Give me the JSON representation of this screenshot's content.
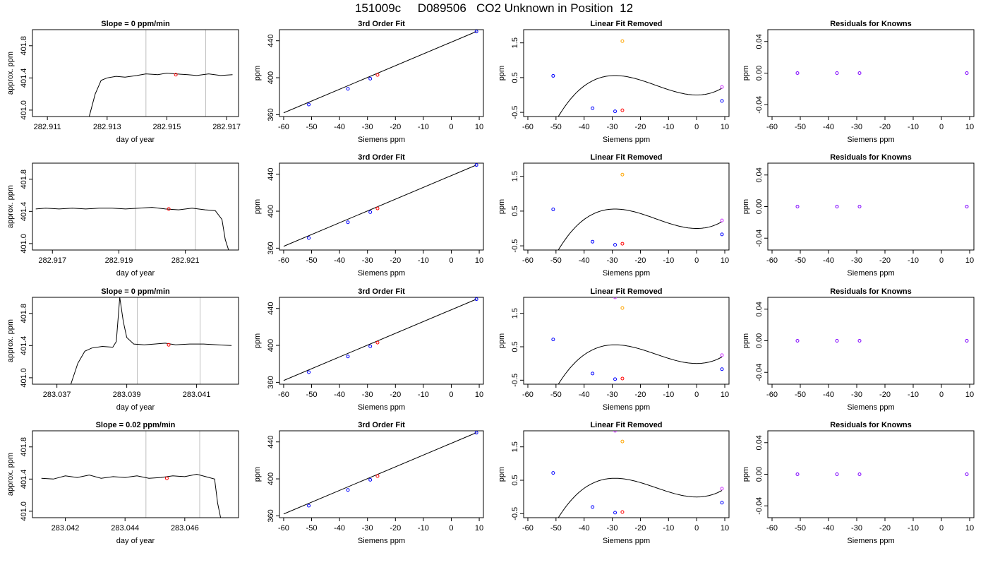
{
  "title": "151009c     D089506   CO2 Unknown in Position  12",
  "colors": {
    "trace": "#000000",
    "known": "#0000ff",
    "unknown": "#ff0000",
    "extra_orange": "#ffa500",
    "extra_magenta": "#cc33ff",
    "residual": "#7f00ff",
    "vline": "#bebebe"
  },
  "chart_data": [
    {
      "type": "line",
      "title": "Slope =  0  ppm/min",
      "xlabel": "day of year",
      "ylabel": "approx. ppm",
      "xlim": [
        282.9105,
        282.9174
      ],
      "ylim": [
        400.92,
        402.0
      ],
      "xticks": [
        "282.911",
        "282.913",
        "282.915",
        "282.917"
      ],
      "xtick_values": [
        282.911,
        282.913,
        282.915,
        282.917
      ],
      "yticks": [
        "401.0",
        "401.4",
        "401.8"
      ],
      "ytick_values": [
        401.0,
        401.4,
        401.8
      ],
      "vlines": [
        282.9143,
        282.9163
      ],
      "series": [
        {
          "x": [
            282.9124,
            282.9126,
            282.9128,
            282.913,
            282.9133,
            282.9136,
            282.914,
            282.9143,
            282.9147,
            282.915,
            282.9153,
            282.9157,
            282.916,
            282.9164,
            282.9168,
            282.9172
          ],
          "y": [
            400.92,
            401.2,
            401.37,
            401.4,
            401.42,
            401.41,
            401.43,
            401.45,
            401.44,
            401.46,
            401.45,
            401.44,
            401.43,
            401.45,
            401.43,
            401.44
          ]
        }
      ],
      "marker": {
        "x": 282.9153,
        "y": 401.44
      },
      "grid": false
    },
    {
      "type": "scatter",
      "title": "3rd Order Fit",
      "xlabel": "Siemens ppm",
      "ylabel": "ppm",
      "xlim": [
        -61.5,
        11.5
      ],
      "ylim": [
        358,
        452
      ],
      "xticks": [
        "-60",
        "-50",
        "-40",
        "-30",
        "-20",
        "-10",
        "0",
        "10"
      ],
      "xtick_values": [
        -60,
        -50,
        -40,
        -30,
        -20,
        -10,
        0,
        10
      ],
      "yticks": [
        "360",
        "400",
        "440"
      ],
      "ytick_values": [
        360,
        400,
        440
      ],
      "fit_line": {
        "x": [
          -60,
          9
        ],
        "y": [
          362,
          450
        ]
      },
      "known_points": {
        "x": [
          -51,
          -37,
          -29,
          9
        ],
        "y": [
          371,
          388,
          399,
          450
        ]
      },
      "unknown_point": {
        "x": -26.4,
        "y": 403
      },
      "grid": false
    },
    {
      "type": "scatter",
      "title": "Linear Fit Removed",
      "xlabel": "Siemens ppm",
      "ylabel": "ppm",
      "xlim": [
        -61.5,
        11.5
      ],
      "ylim": [
        -0.62,
        1.88
      ],
      "xticks": [
        "-60",
        "-50",
        "-40",
        "-30",
        "-20",
        "-10",
        "0",
        "10"
      ],
      "xtick_values": [
        -60,
        -50,
        -40,
        -30,
        -20,
        -10,
        0,
        10
      ],
      "yticks": [
        "-0.5",
        "0.5",
        "1.5"
      ],
      "ytick_values": [
        -0.5,
        0.5,
        1.5
      ],
      "curve": {
        "a": 0.0004,
        "b": 0.000615,
        "c": -0.0223,
        "d": 0.0,
        "x_range": [
          -60,
          9
        ]
      },
      "known_points": {
        "x": [
          -51,
          -37,
          -29,
          9
        ],
        "y": [
          0.55,
          -0.38,
          -0.47,
          -0.17
        ]
      },
      "unknown_point": {
        "x": -26.4,
        "y": -0.44
      },
      "extra_points": [
        {
          "x": -26.4,
          "y": 1.55,
          "color": "extra_orange"
        },
        {
          "x": 9,
          "y": 0.23,
          "color": "extra_magenta"
        }
      ],
      "grid": false
    },
    {
      "type": "scatter",
      "title": "Residuals for Knowns",
      "xlabel": "Siemens ppm",
      "ylabel": "ppm",
      "xlim": [
        -61.5,
        11.5
      ],
      "ylim": [
        -0.055,
        0.055
      ],
      "xticks": [
        "-60",
        "-50",
        "-40",
        "-30",
        "-20",
        "-10",
        "0",
        "10"
      ],
      "xtick_values": [
        -60,
        -50,
        -40,
        -30,
        -20,
        -10,
        0,
        10
      ],
      "yticks": [
        "-0.04",
        "0.00",
        "0.04"
      ],
      "ytick_values": [
        -0.04,
        0.0,
        0.04
      ],
      "points": {
        "x": [
          -51,
          -37,
          -29,
          9
        ],
        "y": [
          0,
          0,
          0,
          0
        ]
      },
      "grid": false
    },
    {
      "type": "line",
      "title": "",
      "xlabel": "day of year",
      "ylabel": "approx. ppm",
      "xlim": [
        282.9164,
        282.9226
      ],
      "ylim": [
        400.92,
        402.0
      ],
      "xticks": [
        "282.917",
        "282.919",
        "282.921"
      ],
      "xtick_values": [
        282.917,
        282.919,
        282.921
      ],
      "yticks": [
        "401.0",
        "401.4",
        "401.8"
      ],
      "ytick_values": [
        401.0,
        401.4,
        401.8
      ],
      "vlines": [
        282.9195,
        282.9213
      ],
      "series": [
        {
          "x": [
            282.9165,
            282.9168,
            282.9172,
            282.9176,
            282.918,
            282.9184,
            282.9188,
            282.9192,
            282.9196,
            282.92,
            282.9204,
            282.9208,
            282.9212,
            282.9216,
            282.9219,
            282.9221,
            282.9222,
            282.9223
          ],
          "y": [
            401.43,
            401.44,
            401.43,
            401.44,
            401.43,
            401.44,
            401.44,
            401.43,
            401.44,
            401.45,
            401.43,
            401.42,
            401.44,
            401.42,
            401.41,
            401.3,
            401.05,
            400.92
          ]
        }
      ],
      "marker": {
        "x": 282.9205,
        "y": 401.43
      },
      "grid": false
    },
    {
      "type": "scatter",
      "title": "3rd Order Fit",
      "xlabel": "Siemens ppm",
      "ylabel": "ppm",
      "xlim": [
        -61.5,
        11.5
      ],
      "ylim": [
        358,
        452
      ],
      "xticks": [
        "-60",
        "-50",
        "-40",
        "-30",
        "-20",
        "-10",
        "0",
        "10"
      ],
      "xtick_values": [
        -60,
        -50,
        -40,
        -30,
        -20,
        -10,
        0,
        10
      ],
      "yticks": [
        "360",
        "400",
        "440"
      ],
      "ytick_values": [
        360,
        400,
        440
      ],
      "fit_line": {
        "x": [
          -60,
          9
        ],
        "y": [
          362,
          450
        ]
      },
      "known_points": {
        "x": [
          -51,
          -37,
          -29,
          9
        ],
        "y": [
          371,
          388,
          399,
          450
        ]
      },
      "unknown_point": {
        "x": -26.4,
        "y": 403
      },
      "grid": false
    },
    {
      "type": "scatter",
      "title": "Linear Fit Removed",
      "xlabel": "Siemens ppm",
      "ylabel": "ppm",
      "xlim": [
        -61.5,
        11.5
      ],
      "ylim": [
        -0.62,
        1.88
      ],
      "xticks": [
        "-60",
        "-50",
        "-40",
        "-30",
        "-20",
        "-10",
        "0",
        "10"
      ],
      "xtick_values": [
        -60,
        -50,
        -40,
        -30,
        -20,
        -10,
        0,
        10
      ],
      "yticks": [
        "-0.5",
        "0.5",
        "1.5"
      ],
      "ytick_values": [
        -0.5,
        0.5,
        1.5
      ],
      "curve": {
        "a": 0.0004,
        "b": 0.000615,
        "c": -0.0223,
        "d": 0.0,
        "x_range": [
          -60,
          9
        ]
      },
      "known_points": {
        "x": [
          -51,
          -37,
          -29,
          9
        ],
        "y": [
          0.55,
          -0.38,
          -0.47,
          -0.17
        ]
      },
      "unknown_point": {
        "x": -26.4,
        "y": -0.44
      },
      "extra_points": [
        {
          "x": -26.4,
          "y": 1.55,
          "color": "extra_orange"
        },
        {
          "x": 9,
          "y": 0.23,
          "color": "extra_magenta"
        }
      ],
      "grid": false
    },
    {
      "type": "scatter",
      "title": "Residuals for Knowns",
      "xlabel": "Siemens ppm",
      "ylabel": "ppm",
      "xlim": [
        -61.5,
        11.5
      ],
      "ylim": [
        -0.055,
        0.055
      ],
      "xticks": [
        "-60",
        "-50",
        "-40",
        "-30",
        "-20",
        "-10",
        "0",
        "10"
      ],
      "xtick_values": [
        -60,
        -50,
        -40,
        -30,
        -20,
        -10,
        0,
        10
      ],
      "yticks": [
        "-0.04",
        "0.00",
        "0.04"
      ],
      "ytick_values": [
        -0.04,
        0.0,
        0.04
      ],
      "points": {
        "x": [
          -51,
          -37,
          -29,
          9
        ],
        "y": [
          0,
          0,
          0,
          0
        ]
      },
      "grid": false
    },
    {
      "type": "line",
      "title": "Slope =  0  ppm/min",
      "xlabel": "day of year",
      "ylabel": "approx. ppm",
      "xlim": [
        283.0363,
        283.0422
      ],
      "ylim": [
        400.92,
        402.0
      ],
      "xticks": [
        "283.037",
        "283.039",
        "283.041"
      ],
      "xtick_values": [
        283.037,
        283.039,
        283.041
      ],
      "yticks": [
        "401.0",
        "401.4",
        "401.8"
      ],
      "ytick_values": [
        401.0,
        401.4,
        401.8
      ],
      "vlines": [
        283.0393,
        283.0411
      ],
      "series": [
        {
          "x": [
            283.0374,
            283.0376,
            283.0378,
            283.038,
            283.0383,
            283.0386,
            283.0387,
            283.0388,
            283.0389,
            283.039,
            283.0392,
            283.0395,
            283.0398,
            283.0401,
            283.0404,
            283.0408,
            283.0412,
            283.0416,
            283.042
          ],
          "y": [
            400.92,
            401.18,
            401.33,
            401.37,
            401.39,
            401.38,
            401.45,
            402.0,
            401.7,
            401.5,
            401.42,
            401.41,
            401.42,
            401.43,
            401.41,
            401.42,
            401.42,
            401.41,
            401.4
          ]
        }
      ],
      "marker": {
        "x": 283.0402,
        "y": 401.41
      },
      "grid": false
    },
    {
      "type": "scatter",
      "title": "3rd Order Fit",
      "xlabel": "Siemens ppm",
      "ylabel": "ppm",
      "xlim": [
        -61.5,
        11.5
      ],
      "ylim": [
        358,
        452
      ],
      "xticks": [
        "-60",
        "-50",
        "-40",
        "-30",
        "-20",
        "-10",
        "0",
        "10"
      ],
      "xtick_values": [
        -60,
        -50,
        -40,
        -30,
        -20,
        -10,
        0,
        10
      ],
      "yticks": [
        "360",
        "400",
        "440"
      ],
      "ytick_values": [
        360,
        400,
        440
      ],
      "fit_line": {
        "x": [
          -60,
          9
        ],
        "y": [
          362,
          450
        ]
      },
      "known_points": {
        "x": [
          -51,
          -37,
          -29,
          9
        ],
        "y": [
          371,
          388,
          399,
          450
        ]
      },
      "unknown_point": {
        "x": -26.4,
        "y": 403
      },
      "grid": false
    },
    {
      "type": "scatter",
      "title": "Linear Fit Removed",
      "xlabel": "Siemens ppm",
      "ylabel": "ppm",
      "xlim": [
        -61.5,
        11.5
      ],
      "ylim": [
        -0.62,
        1.98
      ],
      "xticks": [
        "-60",
        "-50",
        "-40",
        "-30",
        "-20",
        "-10",
        "0",
        "10"
      ],
      "xtick_values": [
        -60,
        -50,
        -40,
        -30,
        -20,
        -10,
        0,
        10
      ],
      "yticks": [
        "-0.5",
        "0.5",
        "1.5"
      ],
      "ytick_values": [
        -0.5,
        0.5,
        1.5
      ],
      "curve": {
        "a": 0.0004,
        "b": 0.000615,
        "c": -0.0223,
        "d": 0.0,
        "x_range": [
          -60,
          9
        ]
      },
      "known_points": {
        "x": [
          -51,
          -37,
          -29,
          9
        ],
        "y": [
          0.72,
          -0.3,
          -0.47,
          -0.17
        ]
      },
      "unknown_point": {
        "x": -26.4,
        "y": -0.45
      },
      "extra_points": [
        {
          "x": -26.4,
          "y": 1.66,
          "color": "extra_orange"
        },
        {
          "x": -29,
          "y": 1.98,
          "color": "extra_magenta"
        },
        {
          "x": 9,
          "y": 0.25,
          "color": "extra_magenta"
        }
      ],
      "grid": false
    },
    {
      "type": "scatter",
      "title": "Residuals for Knowns",
      "xlabel": "Siemens ppm",
      "ylabel": "ppm",
      "xlim": [
        -61.5,
        11.5
      ],
      "ylim": [
        -0.055,
        0.055
      ],
      "xticks": [
        "-60",
        "-50",
        "-40",
        "-30",
        "-20",
        "-10",
        "0",
        "10"
      ],
      "xtick_values": [
        -60,
        -50,
        -40,
        -30,
        -20,
        -10,
        0,
        10
      ],
      "yticks": [
        "-0.04",
        "0.00",
        "0.04"
      ],
      "ytick_values": [
        -0.04,
        0.0,
        0.04
      ],
      "points": {
        "x": [
          -51,
          -37,
          -29,
          9
        ],
        "y": [
          0,
          0,
          0,
          0
        ]
      },
      "grid": false
    },
    {
      "type": "line",
      "title": "Slope =  0.02  ppm/min",
      "xlabel": "day of year",
      "ylabel": "approx. ppm",
      "xlim": [
        283.0409,
        283.0478
      ],
      "ylim": [
        400.92,
        402.0
      ],
      "xticks": [
        "283.042",
        "283.044",
        "283.046"
      ],
      "xtick_values": [
        283.042,
        283.044,
        283.046
      ],
      "yticks": [
        "401.0",
        "401.4",
        "401.8"
      ],
      "ytick_values": [
        401.0,
        401.4,
        401.8
      ],
      "vlines": [
        283.0447,
        283.0465
      ],
      "series": [
        {
          "x": [
            283.0412,
            283.0416,
            283.042,
            283.0424,
            283.0428,
            283.0432,
            283.0436,
            283.044,
            283.0444,
            283.0448,
            283.0452,
            283.0456,
            283.046,
            283.0464,
            283.0467,
            283.047,
            283.0471,
            283.0472
          ],
          "y": [
            401.41,
            401.4,
            401.44,
            401.42,
            401.45,
            401.41,
            401.43,
            401.42,
            401.44,
            401.41,
            401.42,
            401.44,
            401.43,
            401.46,
            401.43,
            401.4,
            401.1,
            400.92
          ]
        }
      ],
      "marker": {
        "x": 283.0454,
        "y": 401.41
      },
      "grid": false
    },
    {
      "type": "scatter",
      "title": "3rd Order Fit",
      "xlabel": "Siemens ppm",
      "ylabel": "ppm",
      "xlim": [
        -61.5,
        11.5
      ],
      "ylim": [
        358,
        452
      ],
      "xticks": [
        "-60",
        "-50",
        "-40",
        "-30",
        "-20",
        "-10",
        "0",
        "10"
      ],
      "xtick_values": [
        -60,
        -50,
        -40,
        -30,
        -20,
        -10,
        0,
        10
      ],
      "yticks": [
        "360",
        "400",
        "440"
      ],
      "ytick_values": [
        360,
        400,
        440
      ],
      "fit_line": {
        "x": [
          -60,
          9
        ],
        "y": [
          362,
          450
        ]
      },
      "known_points": {
        "x": [
          -51,
          -37,
          -29,
          9
        ],
        "y": [
          371,
          388,
          399,
          450
        ]
      },
      "unknown_point": {
        "x": -26.4,
        "y": 403
      },
      "grid": false
    },
    {
      "type": "scatter",
      "title": "Linear Fit Removed",
      "xlabel": "Siemens ppm",
      "ylabel": "ppm",
      "xlim": [
        -61.5,
        11.5
      ],
      "ylim": [
        -0.62,
        1.98
      ],
      "xticks": [
        "-60",
        "-50",
        "-40",
        "-30",
        "-20",
        "-10",
        "0",
        "10"
      ],
      "xtick_values": [
        -60,
        -50,
        -40,
        -30,
        -20,
        -10,
        0,
        10
      ],
      "yticks": [
        "-0.5",
        "0.5",
        "1.5"
      ],
      "ytick_values": [
        -0.5,
        0.5,
        1.5
      ],
      "curve": {
        "a": 0.0004,
        "b": 0.000615,
        "c": -0.0223,
        "d": 0.0,
        "x_range": [
          -60,
          9
        ]
      },
      "known_points": {
        "x": [
          -51,
          -37,
          -29,
          9
        ],
        "y": [
          0.72,
          -0.3,
          -0.47,
          -0.17
        ]
      },
      "unknown_point": {
        "x": -26.4,
        "y": -0.45
      },
      "extra_points": [
        {
          "x": -26.4,
          "y": 1.66,
          "color": "extra_orange"
        },
        {
          "x": -29,
          "y": 1.98,
          "color": "extra_magenta"
        },
        {
          "x": 9,
          "y": 0.25,
          "color": "extra_magenta"
        }
      ],
      "grid": false
    },
    {
      "type": "scatter",
      "title": "Residuals for Knowns",
      "xlabel": "Siemens ppm",
      "ylabel": "ppm",
      "xlim": [
        -61.5,
        11.5
      ],
      "ylim": [
        -0.055,
        0.055
      ],
      "xticks": [
        "-60",
        "-50",
        "-40",
        "-30",
        "-20",
        "-10",
        "0",
        "10"
      ],
      "xtick_values": [
        -60,
        -50,
        -40,
        -30,
        -20,
        -10,
        0,
        10
      ],
      "yticks": [
        "-0.04",
        "0.00",
        "0.04"
      ],
      "ytick_values": [
        -0.04,
        0.0,
        0.04
      ],
      "points": {
        "x": [
          -51,
          -37,
          -29,
          9
        ],
        "y": [
          0,
          0,
          0,
          0
        ]
      },
      "grid": false
    }
  ]
}
